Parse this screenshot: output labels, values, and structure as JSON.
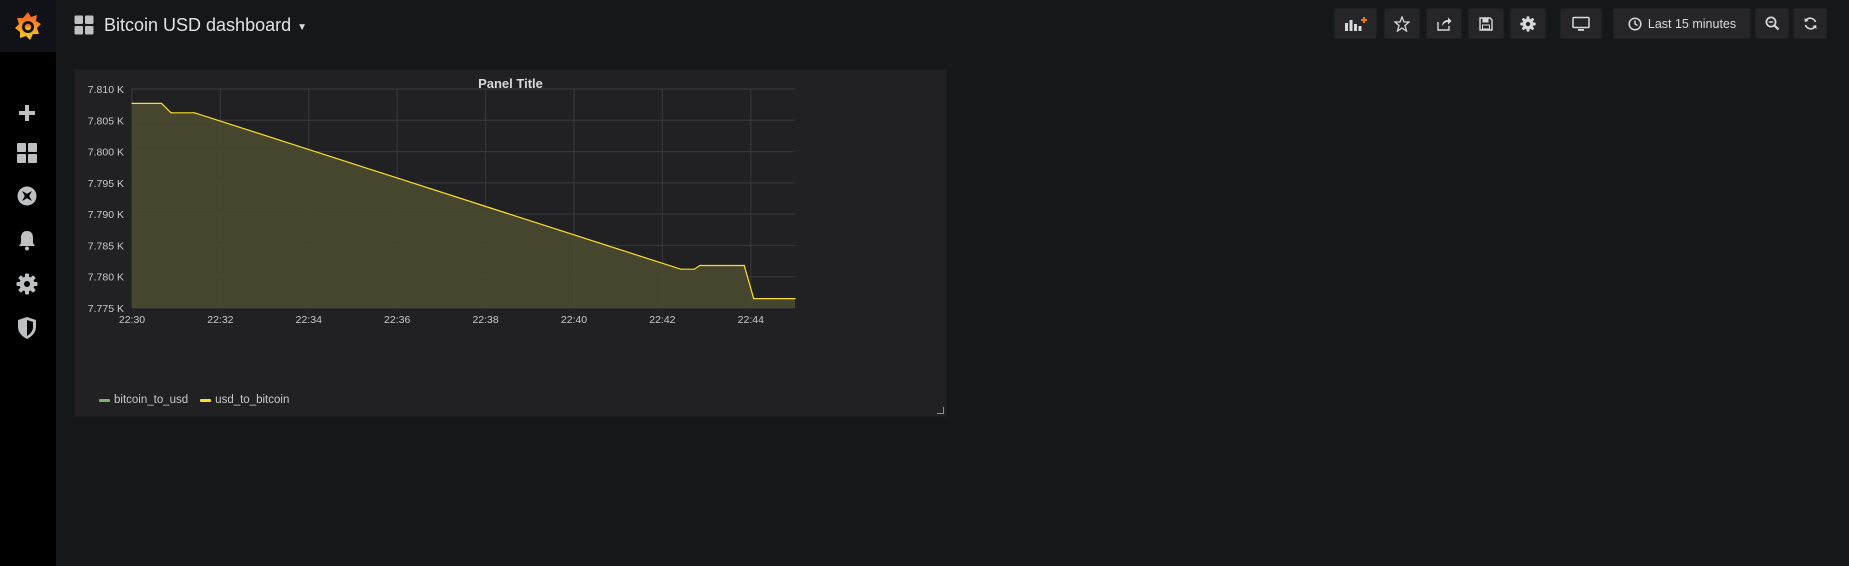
{
  "sidebar": {
    "logo": "grafana-logo",
    "items": [
      {
        "name": "plus-icon"
      },
      {
        "name": "dashboards-icon"
      },
      {
        "name": "explore-icon"
      },
      {
        "name": "bell-icon"
      },
      {
        "name": "gear-icon"
      },
      {
        "name": "shield-icon"
      }
    ]
  },
  "header": {
    "title": "Bitcoin USD dashboard",
    "time_range": "Last 15 minutes"
  },
  "panel": {
    "title": "Panel Title"
  },
  "colors": {
    "accent": "#eb7b18",
    "series_usd_to_bitcoin": "#fade2a",
    "series_bitcoin_to_usd": "#7eb26d",
    "fill": "#4b4c2f"
  },
  "chart_data": {
    "type": "area",
    "title": "Panel Title",
    "xlabel": "",
    "ylabel": "",
    "x_ticks": [
      "22:30",
      "22:32",
      "22:34",
      "22:36",
      "22:38",
      "22:40",
      "22:42",
      "22:44"
    ],
    "y_ticks": [
      "7.775 K",
      "7.780 K",
      "7.785 K",
      "7.790 K",
      "7.795 K",
      "7.800 K",
      "7.805 K",
      "7.810 K"
    ],
    "xlim": [
      "22:30",
      "22:45"
    ],
    "ylim": [
      7775,
      7810
    ],
    "grid": true,
    "legend_position": "bottom-left",
    "series": [
      {
        "name": "bitcoin_to_usd",
        "color": "#7eb26d",
        "x": [],
        "values": []
      },
      {
        "name": "usd_to_bitcoin",
        "color": "#fade2a",
        "x": [
          "22:30:00",
          "22:30:40",
          "22:30:53",
          "22:31:25",
          "22:42:25",
          "22:42:43",
          "22:42:51",
          "22:43:51",
          "22:44:04",
          "22:45:00"
        ],
        "values": [
          7807.7,
          7807.7,
          7806.2,
          7806.2,
          7781.2,
          7781.2,
          7781.8,
          7781.8,
          7776.5,
          7776.5
        ]
      }
    ]
  }
}
